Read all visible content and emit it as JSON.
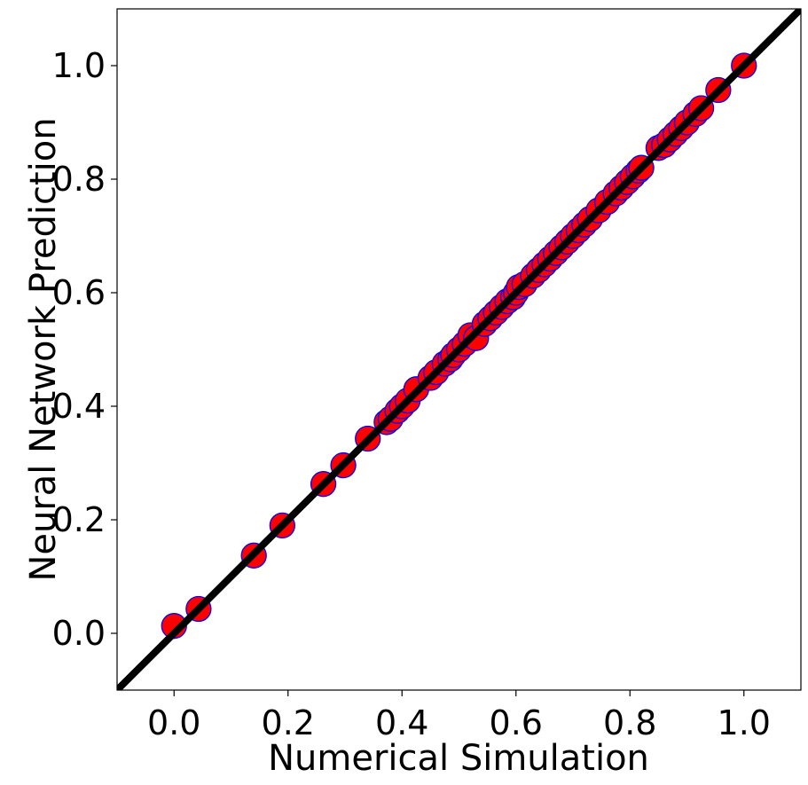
{
  "chart_data": {
    "type": "scatter",
    "title": "",
    "xlabel": "Numerical Simulation",
    "ylabel": "Neural Network Prediction",
    "xlim": [
      -0.1,
      1.1
    ],
    "ylim": [
      -0.1,
      1.1
    ],
    "xticks": [
      "0.0",
      "0.2",
      "0.4",
      "0.6",
      "0.8",
      "1.0"
    ],
    "yticks": [
      "0.0",
      "0.2",
      "0.4",
      "0.6",
      "0.8",
      "1.0"
    ],
    "xtick_values": [
      0.0,
      0.2,
      0.4,
      0.6,
      0.8,
      1.0
    ],
    "ytick_values": [
      0.0,
      0.2,
      0.4,
      0.6,
      0.8,
      1.0
    ],
    "grid": false,
    "reference_line": {
      "slope": 1,
      "intercept": 0,
      "color": "#000000"
    },
    "marker": {
      "face_color": "#ff0000",
      "edge_color": "#0000ff"
    },
    "points": [
      [
        0.0,
        0.013
      ],
      [
        0.043,
        0.043
      ],
      [
        0.14,
        0.137
      ],
      [
        0.19,
        0.19
      ],
      [
        0.262,
        0.263
      ],
      [
        0.297,
        0.296
      ],
      [
        0.34,
        0.343
      ],
      [
        0.373,
        0.372
      ],
      [
        0.38,
        0.378
      ],
      [
        0.392,
        0.392
      ],
      [
        0.4,
        0.4
      ],
      [
        0.41,
        0.41
      ],
      [
        0.425,
        0.43
      ],
      [
        0.45,
        0.45
      ],
      [
        0.46,
        0.46
      ],
      [
        0.475,
        0.475
      ],
      [
        0.485,
        0.483
      ],
      [
        0.49,
        0.49
      ],
      [
        0.5,
        0.5
      ],
      [
        0.51,
        0.51
      ],
      [
        0.52,
        0.525
      ],
      [
        0.53,
        0.52
      ],
      [
        0.545,
        0.545
      ],
      [
        0.555,
        0.555
      ],
      [
        0.565,
        0.565
      ],
      [
        0.575,
        0.575
      ],
      [
        0.585,
        0.585
      ],
      [
        0.595,
        0.592
      ],
      [
        0.6,
        0.6
      ],
      [
        0.605,
        0.61
      ],
      [
        0.615,
        0.615
      ],
      [
        0.63,
        0.63
      ],
      [
        0.64,
        0.64
      ],
      [
        0.65,
        0.65
      ],
      [
        0.66,
        0.66
      ],
      [
        0.67,
        0.67
      ],
      [
        0.68,
        0.68
      ],
      [
        0.69,
        0.69
      ],
      [
        0.7,
        0.7
      ],
      [
        0.71,
        0.71
      ],
      [
        0.72,
        0.72
      ],
      [
        0.73,
        0.73
      ],
      [
        0.745,
        0.745
      ],
      [
        0.76,
        0.76
      ],
      [
        0.775,
        0.775
      ],
      [
        0.785,
        0.785
      ],
      [
        0.795,
        0.795
      ],
      [
        0.805,
        0.805
      ],
      [
        0.815,
        0.815
      ],
      [
        0.82,
        0.82
      ],
      [
        0.85,
        0.855
      ],
      [
        0.86,
        0.86
      ],
      [
        0.87,
        0.87
      ],
      [
        0.88,
        0.88
      ],
      [
        0.89,
        0.89
      ],
      [
        0.9,
        0.9
      ],
      [
        0.915,
        0.915
      ],
      [
        0.925,
        0.925
      ],
      [
        0.955,
        0.957
      ],
      [
        1.0,
        1.0
      ]
    ]
  }
}
